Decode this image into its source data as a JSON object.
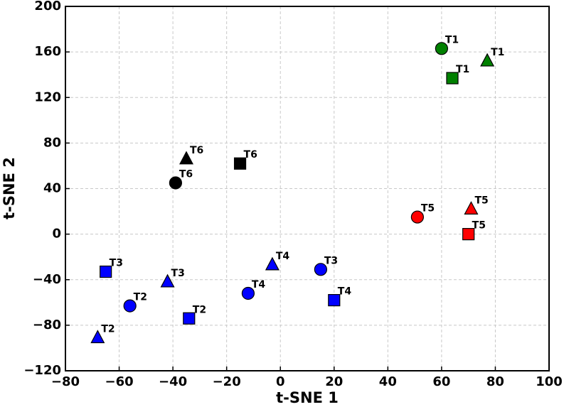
{
  "chart_data": {
    "type": "scatter",
    "xlabel": "t-SNE 1",
    "ylabel": "t-SNE 2",
    "x": [
      60,
      77,
      64,
      -35,
      -15,
      -39,
      51,
      71,
      70,
      -65,
      -42,
      -56,
      -34,
      -68,
      -3,
      -12,
      15,
      20
    ],
    "y": [
      163,
      152,
      137,
      66,
      62,
      45,
      15,
      22,
      0,
      -33,
      -42,
      -63,
      -74,
      -91,
      -27,
      -52,
      -31,
      -58
    ],
    "labels": [
      "T1",
      "T1",
      "T1",
      "T6",
      "T6",
      "T6",
      "T5",
      "T5",
      "T5",
      "T3",
      "T3",
      "T2",
      "T2",
      "T2",
      "T4",
      "T4",
      "T3",
      "T4"
    ],
    "markers": [
      "circle",
      "triangle",
      "square",
      "triangle",
      "square",
      "circle",
      "circle",
      "triangle",
      "square",
      "square",
      "triangle",
      "circle",
      "square",
      "triangle",
      "triangle",
      "circle",
      "circle",
      "square"
    ],
    "colors": [
      "#008000",
      "#008000",
      "#008000",
      "#000000",
      "#000000",
      "#000000",
      "#ff0000",
      "#ff0000",
      "#ff0000",
      "#0000ff",
      "#0000ff",
      "#0000ff",
      "#0000ff",
      "#0000ff",
      "#0000ff",
      "#0000ff",
      "#0000ff",
      "#0000ff"
    ],
    "xlim": [
      -80,
      100
    ],
    "ylim": [
      -120,
      200
    ],
    "xticks": [
      {
        "value": -80,
        "label": "−80"
      },
      {
        "value": -60,
        "label": "−60"
      },
      {
        "value": -40,
        "label": "−40"
      },
      {
        "value": -20,
        "label": "−20"
      },
      0,
      20,
      40,
      60,
      80,
      100
    ],
    "yticks": [
      {
        "value": -120,
        "label": "−120"
      },
      {
        "value": -80,
        "label": "−80"
      },
      {
        "value": -40,
        "label": "−40"
      },
      0,
      40,
      80,
      120,
      160,
      200
    ],
    "grid": true
  }
}
